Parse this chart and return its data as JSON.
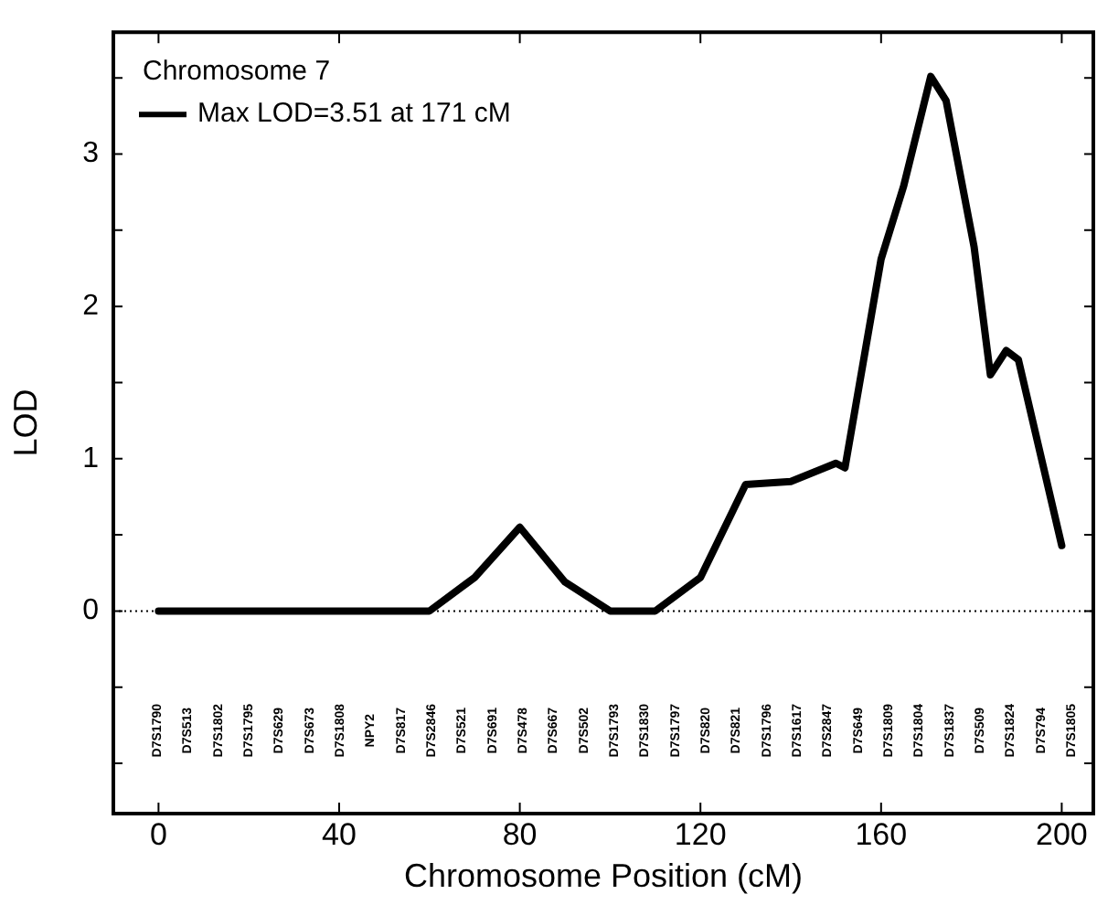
{
  "chart_data": {
    "type": "line",
    "xlabel": "Chromosome Position (cM)",
    "ylabel": "LOD",
    "legend_title": "Chromosome 7",
    "legend": "top left",
    "grid": false,
    "line_style": "solid",
    "marker": "none",
    "x": [
      0,
      60,
      70,
      80,
      90,
      100,
      110,
      120,
      130,
      140,
      150,
      152,
      160,
      165,
      171,
      174.4,
      180.6,
      184.2,
      187.7,
      190.4,
      200
    ],
    "series": [
      {
        "name": "Max LOD=3.51 at 171 cM",
        "color": "#000000",
        "values": [
          0,
          0,
          0.22,
          0.55,
          0.19,
          0,
          0,
          0.22,
          0.83,
          0.85,
          0.97,
          0.94,
          2.31,
          2.79,
          3.51,
          3.35,
          2.39,
          1.55,
          1.71,
          1.65,
          0.43
        ]
      }
    ],
    "xlim": [
      -10,
      207
    ],
    "xticks": [
      0,
      40,
      80,
      120,
      160,
      200
    ],
    "ylim": [
      -1.33,
      3.8
    ],
    "yticks": [
      0,
      1,
      2,
      3,
      {
        "value": 0.5,
        "label": null
      },
      {
        "value": 1.5,
        "label": null
      },
      {
        "value": 2.5,
        "label": null
      },
      {
        "value": 3.5,
        "label": null
      },
      {
        "value": -0.5,
        "label": null
      },
      {
        "value": -1,
        "label": null
      }
    ],
    "ref_lines": [
      {
        "axis": "y",
        "value": 0,
        "color": "#000000",
        "line_style": "dotted"
      }
    ],
    "annotations": [
      "D7S1790",
      "D7S513",
      "D7S1802",
      "D7S1795",
      "D7S629",
      "D7S673",
      "D7S1808",
      "NPY2",
      "D7S817",
      "D7S2846",
      "D7S521",
      "D7S691",
      "D7S478",
      "D7S667",
      "D7S502",
      "D7S1793",
      "D7S1830",
      "D7S1797",
      "D7S820",
      "D7S821",
      "D7S1796",
      "D7S1617",
      "D7S2847",
      "D7S649",
      "D7S1809",
      "D7S1804",
      "D7S1837",
      "D7S509",
      "D7S1824",
      "D7S794",
      "D7S1805"
    ]
  }
}
